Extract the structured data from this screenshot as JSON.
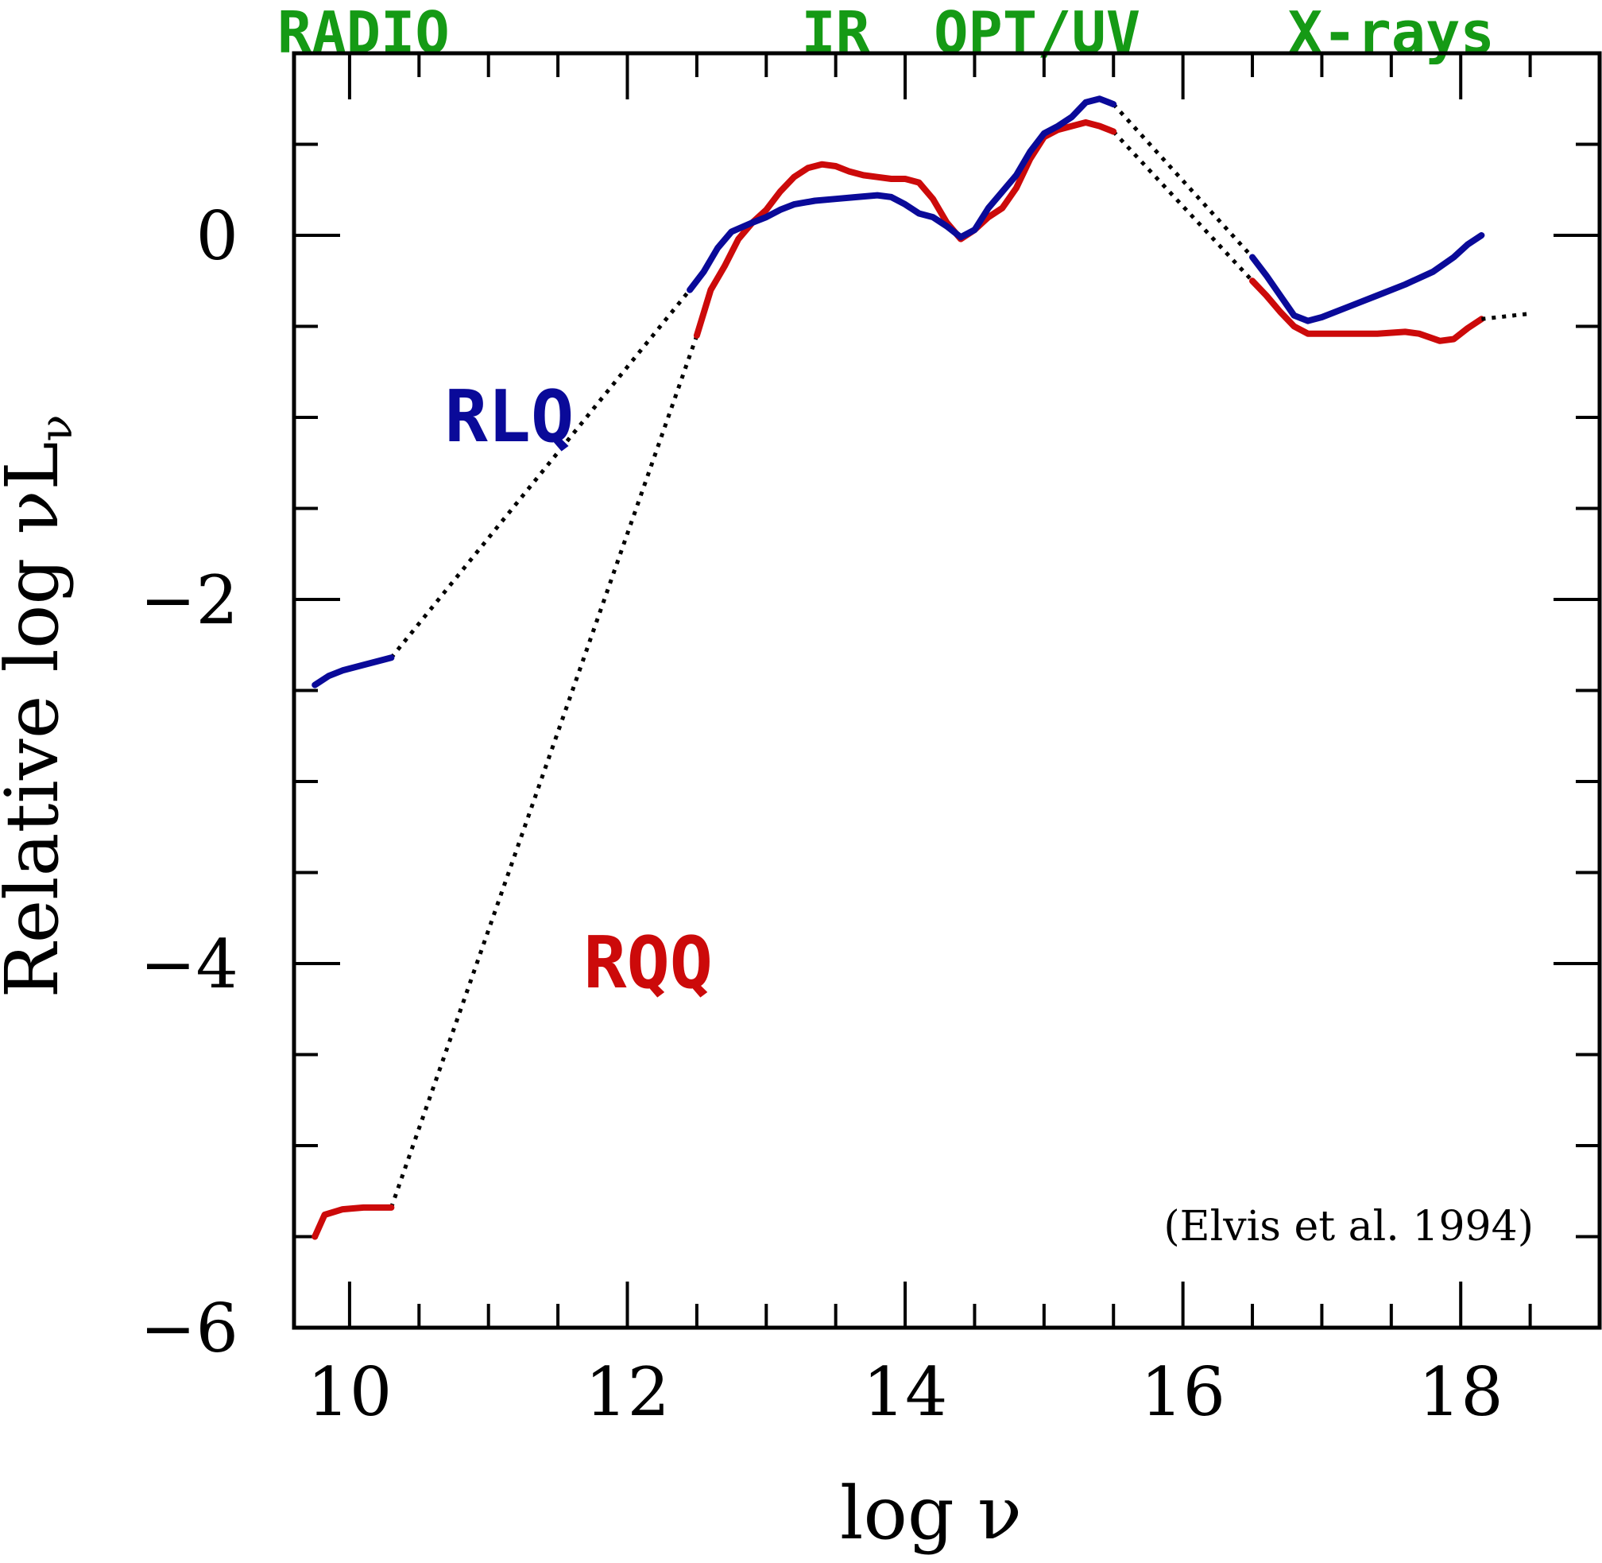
{
  "chart_data": {
    "type": "line",
    "xlabel": "log ν",
    "ylabel_main": "Relative log νL",
    "ylabel_sub": "ν",
    "xlim": [
      9.6,
      19.0
    ],
    "ylim": [
      -6.0,
      1.0
    ],
    "x_ticks": [
      10,
      12,
      14,
      16,
      18
    ],
    "x_tick_labels": [
      "10",
      "12",
      "14",
      "16",
      "18"
    ],
    "y_ticks": [
      0,
      -2,
      -4,
      -6
    ],
    "y_tick_labels": [
      "0",
      "−2",
      "−4",
      "−6"
    ],
    "x_minor_step": 0.5,
    "y_minor_step": 0.5,
    "grid": false,
    "band_labels": [
      {
        "text": "RADIO",
        "x": 10.1
      },
      {
        "text": "IR",
        "x": 13.5
      },
      {
        "text": "OPT/UV",
        "x": 14.95
      },
      {
        "text": "X-rays",
        "x": 17.5
      }
    ],
    "series_labels": [
      {
        "text": "RLQ",
        "color": "#0a0a99",
        "x": 11.15,
        "y": -1.0
      },
      {
        "text": "RQQ",
        "color": "#cc0a0a",
        "x": 12.15,
        "y": -4.0
      }
    ],
    "annotation": "(Elvis et al. 1994)",
    "series": [
      {
        "color": "#cc0a0a",
        "segments": [
          [
            [
              9.75,
              -5.5
            ],
            [
              9.82,
              -5.38
            ],
            [
              9.95,
              -5.35
            ],
            [
              10.1,
              -5.34
            ],
            [
              10.3,
              -5.34
            ]
          ],
          [
            [
              12.5,
              -0.55
            ],
            [
              12.6,
              -0.3
            ],
            [
              12.7,
              -0.17
            ],
            [
              12.8,
              -0.02
            ],
            [
              12.9,
              0.07
            ],
            [
              13.0,
              0.14
            ],
            [
              13.1,
              0.24
            ],
            [
              13.2,
              0.32
            ],
            [
              13.3,
              0.37
            ],
            [
              13.4,
              0.39
            ],
            [
              13.5,
              0.38
            ],
            [
              13.6,
              0.35
            ],
            [
              13.7,
              0.33
            ],
            [
              13.8,
              0.32
            ],
            [
              13.9,
              0.31
            ],
            [
              14.0,
              0.31
            ],
            [
              14.1,
              0.29
            ],
            [
              14.2,
              0.2
            ],
            [
              14.3,
              0.07
            ],
            [
              14.4,
              -0.02
            ],
            [
              14.5,
              0.03
            ],
            [
              14.6,
              0.1
            ],
            [
              14.7,
              0.15
            ],
            [
              14.8,
              0.26
            ],
            [
              14.9,
              0.42
            ],
            [
              15.0,
              0.54
            ],
            [
              15.1,
              0.58
            ],
            [
              15.2,
              0.6
            ],
            [
              15.3,
              0.62
            ],
            [
              15.4,
              0.6
            ],
            [
              15.5,
              0.57
            ]
          ],
          [
            [
              16.5,
              -0.25
            ],
            [
              16.6,
              -0.33
            ],
            [
              16.7,
              -0.42
            ],
            [
              16.8,
              -0.5
            ],
            [
              16.9,
              -0.54
            ],
            [
              17.0,
              -0.54
            ],
            [
              17.2,
              -0.54
            ],
            [
              17.4,
              -0.54
            ],
            [
              17.6,
              -0.53
            ],
            [
              17.7,
              -0.54
            ],
            [
              17.85,
              -0.58
            ],
            [
              17.95,
              -0.57
            ],
            [
              18.05,
              -0.51
            ],
            [
              18.15,
              -0.46
            ]
          ]
        ],
        "dotted": [
          [
            [
              10.3,
              -5.34
            ],
            [
              12.5,
              -0.55
            ]
          ],
          [
            [
              15.5,
              0.57
            ],
            [
              16.5,
              -0.25
            ]
          ]
        ]
      },
      {
        "color": "#0a0a99",
        "segments": [
          [
            [
              9.75,
              -2.47
            ],
            [
              9.85,
              -2.42
            ],
            [
              9.95,
              -2.39
            ],
            [
              10.1,
              -2.36
            ],
            [
              10.3,
              -2.32
            ]
          ],
          [
            [
              12.45,
              -0.3
            ],
            [
              12.55,
              -0.2
            ],
            [
              12.65,
              -0.07
            ],
            [
              12.75,
              0.02
            ],
            [
              12.9,
              0.07
            ],
            [
              13.0,
              0.1
            ],
            [
              13.1,
              0.14
            ],
            [
              13.2,
              0.17
            ],
            [
              13.35,
              0.19
            ],
            [
              13.5,
              0.2
            ],
            [
              13.65,
              0.21
            ],
            [
              13.8,
              0.22
            ],
            [
              13.9,
              0.21
            ],
            [
              14.0,
              0.17
            ],
            [
              14.1,
              0.12
            ],
            [
              14.2,
              0.1
            ],
            [
              14.3,
              0.05
            ],
            [
              14.4,
              -0.01
            ],
            [
              14.5,
              0.03
            ],
            [
              14.6,
              0.15
            ],
            [
              14.7,
              0.24
            ],
            [
              14.8,
              0.33
            ],
            [
              14.9,
              0.46
            ],
            [
              15.0,
              0.56
            ],
            [
              15.1,
              0.6
            ],
            [
              15.2,
              0.65
            ],
            [
              15.3,
              0.73
            ],
            [
              15.4,
              0.75
            ],
            [
              15.5,
              0.72
            ]
          ],
          [
            [
              16.5,
              -0.12
            ],
            [
              16.6,
              -0.22
            ],
            [
              16.7,
              -0.33
            ],
            [
              16.8,
              -0.44
            ],
            [
              16.9,
              -0.47
            ],
            [
              17.0,
              -0.45
            ],
            [
              17.2,
              -0.39
            ],
            [
              17.4,
              -0.33
            ],
            [
              17.6,
              -0.27
            ],
            [
              17.8,
              -0.2
            ],
            [
              17.95,
              -0.12
            ],
            [
              18.05,
              -0.05
            ],
            [
              18.15,
              0.0
            ]
          ]
        ],
        "dotted": [
          [
            [
              10.3,
              -2.32
            ],
            [
              12.45,
              -0.3
            ]
          ],
          [
            [
              15.5,
              0.72
            ],
            [
              16.5,
              -0.12
            ]
          ]
        ]
      },
      {
        "color": "#000000",
        "segments": [],
        "dotted": [
          [
            [
              18.15,
              -0.46
            ],
            [
              18.5,
              -0.43
            ]
          ]
        ]
      }
    ]
  }
}
